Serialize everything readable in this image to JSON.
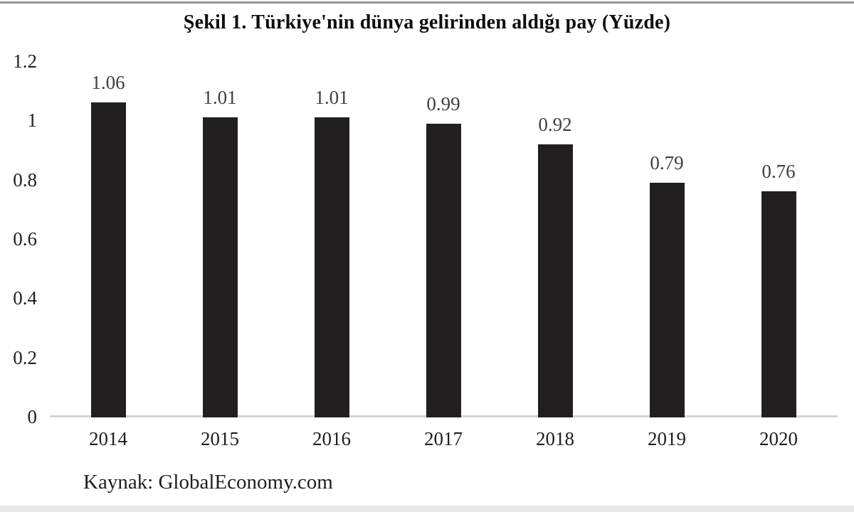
{
  "chart_data": {
    "type": "bar",
    "title": "Şekil 1. Türkiye'nin dünya gelirinden aldığı pay (Yüzde)",
    "categories": [
      "2014",
      "2015",
      "2016",
      "2017",
      "2018",
      "2019",
      "2020"
    ],
    "values": [
      1.06,
      1.01,
      1.01,
      0.99,
      0.92,
      0.79,
      0.76
    ],
    "value_labels": [
      "1.06",
      "1.01",
      "1.01",
      "0.99",
      "0.92",
      "0.79",
      "0.76"
    ],
    "y_ticks": [
      "0",
      "0.2",
      "0.4",
      "0.6",
      "0.8",
      "1",
      "1.2"
    ],
    "ylim": [
      0,
      1.2
    ],
    "xlabel": "",
    "ylabel": "",
    "grid": false,
    "legend": "none",
    "source": "Kaynak: GlobalEconomy.com"
  },
  "colors": {
    "background": "#ffffff",
    "bar": "#231f20",
    "title": "#0e0e0e",
    "value_label": "#3f3f3f",
    "axis_label": "#1e1e1e",
    "axis_line": "#d5d5d5",
    "top_border": "#939393",
    "bottom_strip": "#e7e7e7"
  }
}
